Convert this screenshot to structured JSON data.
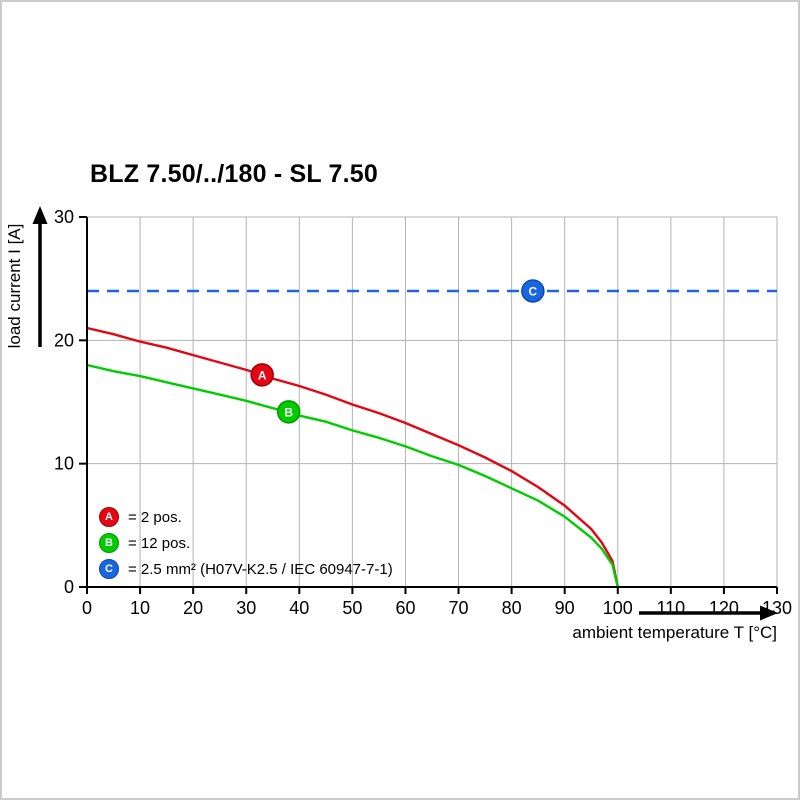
{
  "title": "BLZ 7.50/../180 - SL 7.50",
  "chart_data": {
    "type": "line",
    "title": "BLZ 7.50/../180 - SL 7.50",
    "xlabel": "ambient temperature T [°C]",
    "ylabel": "load current I [A]",
    "xlim": [
      0,
      130
    ],
    "ylim": [
      0,
      30
    ],
    "x_ticks": [
      0,
      10,
      20,
      30,
      40,
      50,
      60,
      70,
      80,
      90,
      100,
      110,
      120,
      130
    ],
    "y_ticks": [
      0,
      10,
      20,
      30
    ],
    "grid": true,
    "grid_color": "#b3b3b3",
    "axis_color": "#000000",
    "legend_position": "bottom-left-inside",
    "series": [
      {
        "name": "A",
        "label": "= 2 pos.",
        "color": "#e30613",
        "stroke": "#a30008",
        "style": "solid",
        "points": [
          [
            0,
            21
          ],
          [
            5,
            20.5
          ],
          [
            10,
            19.9
          ],
          [
            15,
            19.4
          ],
          [
            20,
            18.8
          ],
          [
            25,
            18.2
          ],
          [
            30,
            17.6
          ],
          [
            33,
            17.2
          ],
          [
            35,
            16.9
          ],
          [
            40,
            16.3
          ],
          [
            45,
            15.6
          ],
          [
            50,
            14.8
          ],
          [
            55,
            14.1
          ],
          [
            60,
            13.3
          ],
          [
            65,
            12.4
          ],
          [
            70,
            11.5
          ],
          [
            75,
            10.5
          ],
          [
            80,
            9.4
          ],
          [
            85,
            8.1
          ],
          [
            90,
            6.6
          ],
          [
            95,
            4.7
          ],
          [
            97,
            3.6
          ],
          [
            99,
            2.1
          ],
          [
            100,
            0
          ]
        ],
        "marker": {
          "x": 33,
          "y": 17.2
        }
      },
      {
        "name": "B",
        "label": "= 12 pos.",
        "color": "#00cc00",
        "stroke": "#009900",
        "style": "solid",
        "points": [
          [
            0,
            18
          ],
          [
            5,
            17.5
          ],
          [
            10,
            17.1
          ],
          [
            15,
            16.6
          ],
          [
            20,
            16.1
          ],
          [
            25,
            15.6
          ],
          [
            30,
            15.1
          ],
          [
            35,
            14.5
          ],
          [
            38,
            14.2
          ],
          [
            40,
            13.9
          ],
          [
            45,
            13.4
          ],
          [
            50,
            12.7
          ],
          [
            55,
            12.1
          ],
          [
            60,
            11.4
          ],
          [
            65,
            10.6
          ],
          [
            70,
            9.9
          ],
          [
            75,
            9
          ],
          [
            80,
            8
          ],
          [
            85,
            7
          ],
          [
            90,
            5.7
          ],
          [
            95,
            4
          ],
          [
            97,
            3.1
          ],
          [
            99,
            1.8
          ],
          [
            100,
            0
          ]
        ],
        "marker": {
          "x": 38,
          "y": 14.2
        }
      },
      {
        "name": "C",
        "label": "= 2.5 mm² (H07V-K2.5 / IEC 60947-7-1)",
        "color": "#1a66e0",
        "stroke": "#0d47b0",
        "style": "dashed",
        "points": [
          [
            0,
            24
          ],
          [
            130,
            24
          ]
        ],
        "marker": {
          "x": 84,
          "y": 24
        }
      }
    ]
  }
}
